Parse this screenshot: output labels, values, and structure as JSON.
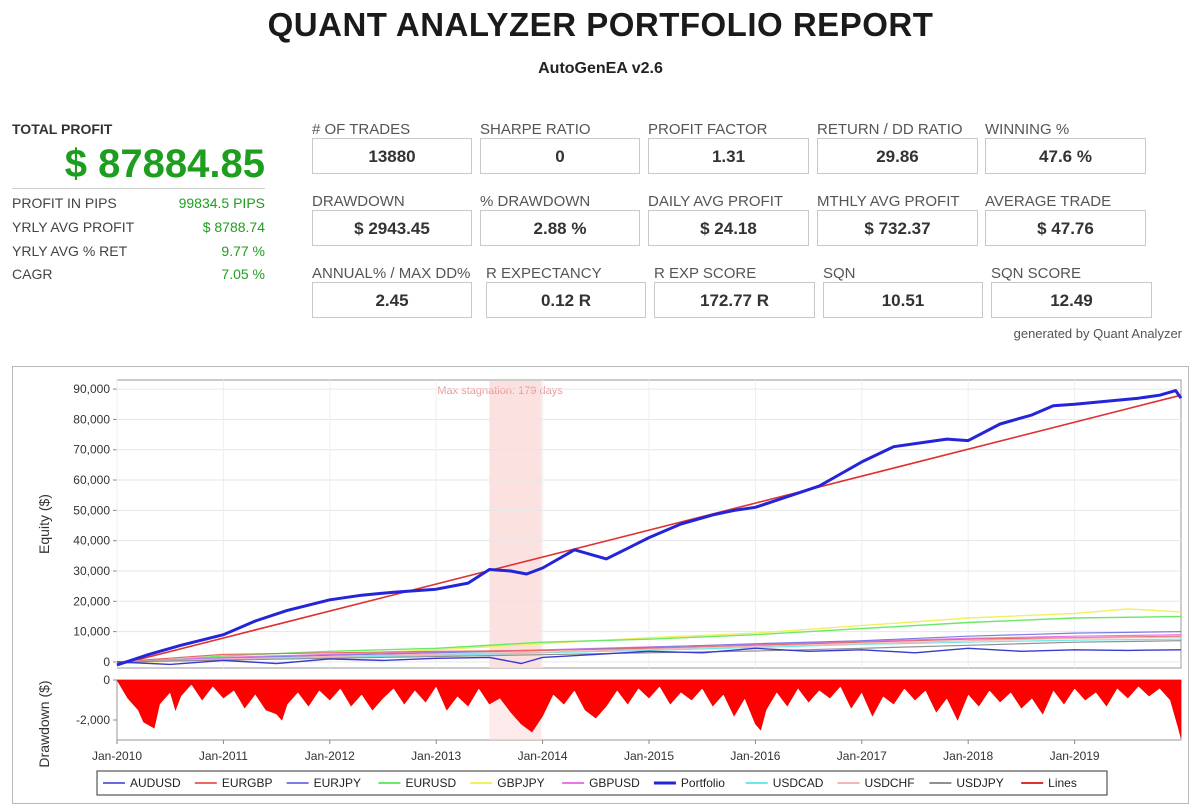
{
  "header": {
    "title": "QUANT ANALYZER PORTFOLIO REPORT",
    "subtitle": "AutoGenEA v2.6"
  },
  "summary": {
    "total_profit_label": "TOTAL PROFIT",
    "total_profit_value": "$ 87884.85",
    "items": [
      {
        "label": "PROFIT IN PIPS",
        "value": "99834.5 PIPS"
      },
      {
        "label": "YRLY AVG PROFIT",
        "value": "$ 8788.74"
      },
      {
        "label": "YRLY AVG % RET",
        "value": "9.77 %"
      },
      {
        "label": "CAGR",
        "value": "7.05 %"
      }
    ]
  },
  "stats_row1": [
    {
      "label": "# OF TRADES",
      "value": "13880"
    },
    {
      "label": "SHARPE RATIO",
      "value": "0"
    },
    {
      "label": "PROFIT FACTOR",
      "value": "1.31"
    },
    {
      "label": "RETURN / DD RATIO",
      "value": "29.86"
    },
    {
      "label": "WINNING %",
      "value": "47.6 %"
    }
  ],
  "stats_row2": [
    {
      "label": "DRAWDOWN",
      "value": "$ 2943.45"
    },
    {
      "label": "% DRAWDOWN",
      "value": "2.88 %"
    },
    {
      "label": "DAILY AVG PROFIT",
      "value": "$ 24.18"
    },
    {
      "label": "MTHLY AVG PROFIT",
      "value": "$ 732.37"
    },
    {
      "label": "AVERAGE TRADE",
      "value": "$ 47.76"
    }
  ],
  "stats_row3": [
    {
      "label": "ANNUAL% / MAX DD%",
      "value": "2.45"
    },
    {
      "label": "R EXPECTANCY",
      "value": "0.12 R"
    },
    {
      "label": "R EXP SCORE",
      "value": "172.77 R"
    },
    {
      "label": "SQN",
      "value": "10.51"
    },
    {
      "label": "SQN SCORE",
      "value": "12.49"
    }
  ],
  "generated_by": "generated by Quant Analyzer",
  "chart_data": {
    "type": "line",
    "annotation": "Max stagnation: 179 days",
    "stagnation_range": [
      2013.5,
      2013.99
    ],
    "x_range": [
      2010.0,
      2020.0
    ],
    "x_ticks": [
      "Jan-2010",
      "Jan-2011",
      "Jan-2012",
      "Jan-2013",
      "Jan-2014",
      "Jan-2015",
      "Jan-2016",
      "Jan-2017",
      "Jan-2018",
      "Jan-2019"
    ],
    "equity_axis": {
      "ylabel": "Equity ($)",
      "ylim": [
        -2000,
        93000
      ],
      "ticks": [
        "90,000",
        "80,000",
        "70,000",
        "60,000",
        "50,000",
        "40,000",
        "30,000",
        "20,000",
        "10,000",
        "0"
      ],
      "tick_values": [
        90000,
        80000,
        70000,
        60000,
        50000,
        40000,
        30000,
        20000,
        10000,
        0
      ]
    },
    "drawdown_axis": {
      "ylabel": "Drawdown ($)",
      "ylim": [
        -3000,
        0
      ],
      "ticks": [
        "0",
        "-2,000"
      ],
      "tick_values": [
        0,
        -2000
      ]
    },
    "legend": {
      "placement": "bottom",
      "entries": [
        {
          "name": "AUDUSD",
          "color": "#6a6ae0"
        },
        {
          "name": "EURGBP",
          "color": "#e86a6a"
        },
        {
          "name": "EURJPY",
          "color": "#7c7ce8"
        },
        {
          "name": "EURUSD",
          "color": "#6ae86a"
        },
        {
          "name": "GBPJPY",
          "color": "#f0f060"
        },
        {
          "name": "GBPUSD",
          "color": "#e878e8"
        },
        {
          "name": "Portfolio",
          "color": "#2424d8"
        },
        {
          "name": "USDCAD",
          "color": "#70e8e8"
        },
        {
          "name": "USDCHF",
          "color": "#f5b5b5"
        },
        {
          "name": "USDJPY",
          "color": "#909090"
        },
        {
          "name": "Lines",
          "color": "#e03030"
        }
      ]
    },
    "series": [
      {
        "name": "Portfolio",
        "color": "#2424d8",
        "width": 3,
        "x": [
          2010.0,
          2010.3,
          2010.6,
          2011.0,
          2011.3,
          2011.6,
          2012.0,
          2012.3,
          2012.6,
          2013.0,
          2013.3,
          2013.5,
          2013.7,
          2013.85,
          2014.0,
          2014.3,
          2014.6,
          2014.8,
          2015.0,
          2015.3,
          2015.6,
          2015.8,
          2016.0,
          2016.3,
          2016.6,
          2016.8,
          2017.0,
          2017.3,
          2017.6,
          2017.8,
          2018.0,
          2018.3,
          2018.6,
          2018.8,
          2019.0,
          2019.3,
          2019.6,
          2019.8,
          2019.95,
          2020.0
        ],
        "values": [
          -1000,
          2500,
          5500,
          9000,
          13500,
          17000,
          20500,
          22000,
          23000,
          24000,
          26000,
          30500,
          30000,
          29000,
          31000,
          37000,
          34000,
          37500,
          41000,
          45500,
          48500,
          50000,
          51000,
          54500,
          58000,
          62000,
          66000,
          71000,
          72500,
          73500,
          73000,
          78500,
          81500,
          84500,
          85000,
          86000,
          87000,
          88000,
          89500,
          87000
        ]
      },
      {
        "name": "Lines",
        "color": "#e03030",
        "width": 1.6,
        "x": [
          2010.0,
          2020.0
        ],
        "values": [
          -1000,
          88000
        ]
      },
      {
        "name": "GBPJPY",
        "color": "#f0f060",
        "width": 1.4,
        "x": [
          2010.0,
          2011.0,
          2012.0,
          2013.0,
          2014.0,
          2015.0,
          2016.0,
          2017.0,
          2018.0,
          2019.0,
          2019.5,
          2020.0
        ],
        "values": [
          -500,
          1000,
          2500,
          4000,
          6000,
          8000,
          9500,
          12000,
          14500,
          16000,
          17500,
          16500
        ]
      },
      {
        "name": "EURUSD",
        "color": "#6ae86a",
        "width": 1.4,
        "x": [
          2010.0,
          2011.0,
          2012.0,
          2013.0,
          2014.0,
          2015.0,
          2016.0,
          2017.0,
          2018.0,
          2019.0,
          2020.0
        ],
        "values": [
          -500,
          2000,
          3500,
          4500,
          6500,
          7500,
          9000,
          11000,
          13000,
          14500,
          15000
        ]
      },
      {
        "name": "GBPUSD",
        "color": "#e878e8",
        "width": 1.2,
        "x": [
          2010.0,
          2011.0,
          2012.0,
          2013.0,
          2014.0,
          2015.0,
          2016.0,
          2017.0,
          2018.0,
          2019.0,
          2020.0
        ],
        "values": [
          0,
          1500,
          2500,
          3200,
          4000,
          5000,
          5800,
          6800,
          7800,
          8500,
          9000
        ]
      },
      {
        "name": "EURJPY",
        "color": "#7c7ce8",
        "width": 1.2,
        "x": [
          2010.0,
          2011.0,
          2012.0,
          2013.0,
          2014.0,
          2015.0,
          2016.0,
          2017.0,
          2018.0,
          2019.0,
          2020.0
        ],
        "values": [
          0,
          1200,
          2200,
          3000,
          3800,
          4800,
          6000,
          7000,
          8500,
          9500,
          10000
        ]
      },
      {
        "name": "EURGBP",
        "color": "#e86a6a",
        "width": 1.2,
        "x": [
          2010.0,
          2011.0,
          2012.0,
          2013.0,
          2014.0,
          2015.0,
          2016.0,
          2017.0,
          2018.0,
          2019.0,
          2020.0
        ],
        "values": [
          0,
          2500,
          3000,
          3500,
          3800,
          4500,
          5500,
          6500,
          7500,
          8000,
          8500
        ]
      },
      {
        "name": "USDCAD",
        "color": "#70e8e8",
        "width": 1.2,
        "x": [
          2010.0,
          2011.0,
          2012.0,
          2013.0,
          2014.0,
          2015.0,
          2016.0,
          2017.0,
          2018.0,
          2019.0,
          2020.0
        ],
        "values": [
          0,
          800,
          1500,
          2200,
          3000,
          3800,
          4800,
          5800,
          6500,
          7200,
          7500
        ]
      },
      {
        "name": "USDCHF",
        "color": "#f5b5b5",
        "width": 1.2,
        "x": [
          2010.0,
          2011.0,
          2012.0,
          2013.0,
          2014.0,
          2015.0,
          2016.0,
          2017.0,
          2018.0,
          2019.0,
          2020.0
        ],
        "values": [
          0,
          1000,
          1800,
          2600,
          3200,
          4200,
          5200,
          6000,
          7000,
          7800,
          8200
        ]
      },
      {
        "name": "USDJPY",
        "color": "#909090",
        "width": 1.2,
        "x": [
          2010.0,
          2011.0,
          2012.0,
          2013.0,
          2014.0,
          2015.0,
          2016.0,
          2017.0,
          2018.0,
          2019.0,
          2020.0
        ],
        "values": [
          0,
          600,
          1200,
          1800,
          2400,
          3000,
          3600,
          4500,
          5500,
          6500,
          7000
        ]
      },
      {
        "name": "AUDUSD",
        "color": "#3a3ad0",
        "width": 1.4,
        "x": [
          2010.0,
          2010.5,
          2011.0,
          2011.5,
          2012.0,
          2012.5,
          2013.0,
          2013.5,
          2013.8,
          2014.0,
          2014.5,
          2015.0,
          2015.5,
          2016.0,
          2016.5,
          2017.0,
          2017.5,
          2018.0,
          2018.5,
          2019.0,
          2019.5,
          2020.0
        ],
        "values": [
          0,
          -800,
          500,
          -500,
          1000,
          500,
          1200,
          1500,
          -500,
          1500,
          2500,
          3500,
          3000,
          4500,
          3500,
          4000,
          3000,
          4500,
          3500,
          4000,
          3800,
          4000
        ]
      }
    ],
    "drawdown": {
      "x": [
        2010.0,
        2010.1,
        2010.2,
        2010.25,
        2010.35,
        2010.4,
        2010.5,
        2010.55,
        2010.6,
        2010.7,
        2010.8,
        2010.9,
        2011.0,
        2011.1,
        2011.2,
        2011.3,
        2011.4,
        2011.5,
        2011.55,
        2011.6,
        2011.7,
        2011.8,
        2011.9,
        2012.0,
        2012.1,
        2012.2,
        2012.3,
        2012.4,
        2012.5,
        2012.6,
        2012.7,
        2012.8,
        2012.9,
        2013.0,
        2013.1,
        2013.2,
        2013.3,
        2013.4,
        2013.5,
        2013.6,
        2013.7,
        2013.8,
        2013.9,
        2014.0,
        2014.1,
        2014.2,
        2014.3,
        2014.4,
        2014.5,
        2014.6,
        2014.7,
        2014.8,
        2014.9,
        2015.0,
        2015.1,
        2015.2,
        2015.3,
        2015.4,
        2015.5,
        2015.6,
        2015.7,
        2015.8,
        2015.9,
        2016.0,
        2016.05,
        2016.1,
        2016.2,
        2016.3,
        2016.4,
        2016.5,
        2016.6,
        2016.7,
        2016.8,
        2016.9,
        2017.0,
        2017.1,
        2017.2,
        2017.3,
        2017.4,
        2017.5,
        2017.6,
        2017.7,
        2017.8,
        2017.9,
        2018.0,
        2018.1,
        2018.2,
        2018.3,
        2018.4,
        2018.5,
        2018.6,
        2018.7,
        2018.8,
        2018.9,
        2019.0,
        2019.1,
        2019.2,
        2019.3,
        2019.4,
        2019.5,
        2019.6,
        2019.7,
        2019.8,
        2019.9,
        2019.97,
        2020.0
      ],
      "values": [
        0,
        -900,
        -1500,
        -2100,
        -2400,
        -1200,
        -600,
        -1500,
        -800,
        -200,
        -1000,
        -300,
        -900,
        -500,
        -1400,
        -700,
        -1500,
        -1700,
        -2000,
        -1200,
        -600,
        -1300,
        -500,
        -1000,
        -400,
        -1300,
        -700,
        -1500,
        -900,
        -400,
        -1200,
        -500,
        -1100,
        -300,
        -1500,
        -800,
        -1300,
        -400,
        -1200,
        -900,
        -1600,
        -2200,
        -2600,
        -1800,
        -700,
        -1200,
        -500,
        -1500,
        -1900,
        -1300,
        -500,
        -1200,
        -400,
        -900,
        -300,
        -1200,
        -600,
        -1000,
        -400,
        -1300,
        -700,
        -1800,
        -900,
        -2200,
        -2500,
        -1500,
        -600,
        -1300,
        -400,
        -1100,
        -500,
        -900,
        -300,
        -1400,
        -600,
        -1800,
        -800,
        -1200,
        -400,
        -1000,
        -500,
        -1600,
        -900,
        -2000,
        -700,
        -1300,
        -500,
        -1100,
        -600,
        -1400,
        -900,
        -1700,
        -500,
        -1200,
        -400,
        -1000,
        -600,
        -1300,
        -400,
        -900,
        -300,
        -800,
        -400,
        -1000,
        -2300,
        -2900
      ]
    }
  }
}
